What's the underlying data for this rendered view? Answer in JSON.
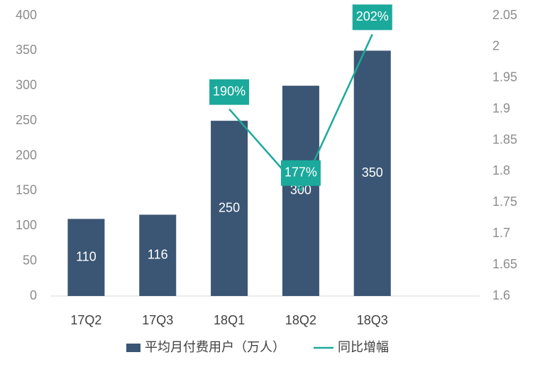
{
  "chart_data": {
    "type": "combo",
    "categories": [
      "17Q2",
      "17Q3",
      "18Q1",
      "18Q2",
      "18Q3"
    ],
    "series": [
      {
        "name": "平均月付费用户（万人）",
        "type": "bar",
        "color": "#3b5674",
        "values": [
          110,
          116,
          250,
          300,
          350
        ]
      },
      {
        "name": "同比增幅",
        "type": "line",
        "axis": "y2",
        "color": "#1ba99b",
        "values": [
          null,
          null,
          1.9,
          1.77,
          2.02
        ],
        "value_labels": [
          null,
          null,
          "190%",
          "177%",
          "202%"
        ]
      }
    ],
    "ylim": [
      0,
      400
    ],
    "yticks": [
      0,
      50,
      100,
      150,
      200,
      250,
      300,
      350,
      400
    ],
    "y2lim": [
      1.6,
      2.05
    ],
    "y2ticks": [
      1.6,
      1.65,
      1.7,
      1.75,
      1.8,
      1.85,
      1.9,
      1.95,
      2,
      2.05
    ],
    "legend": "bottom"
  }
}
